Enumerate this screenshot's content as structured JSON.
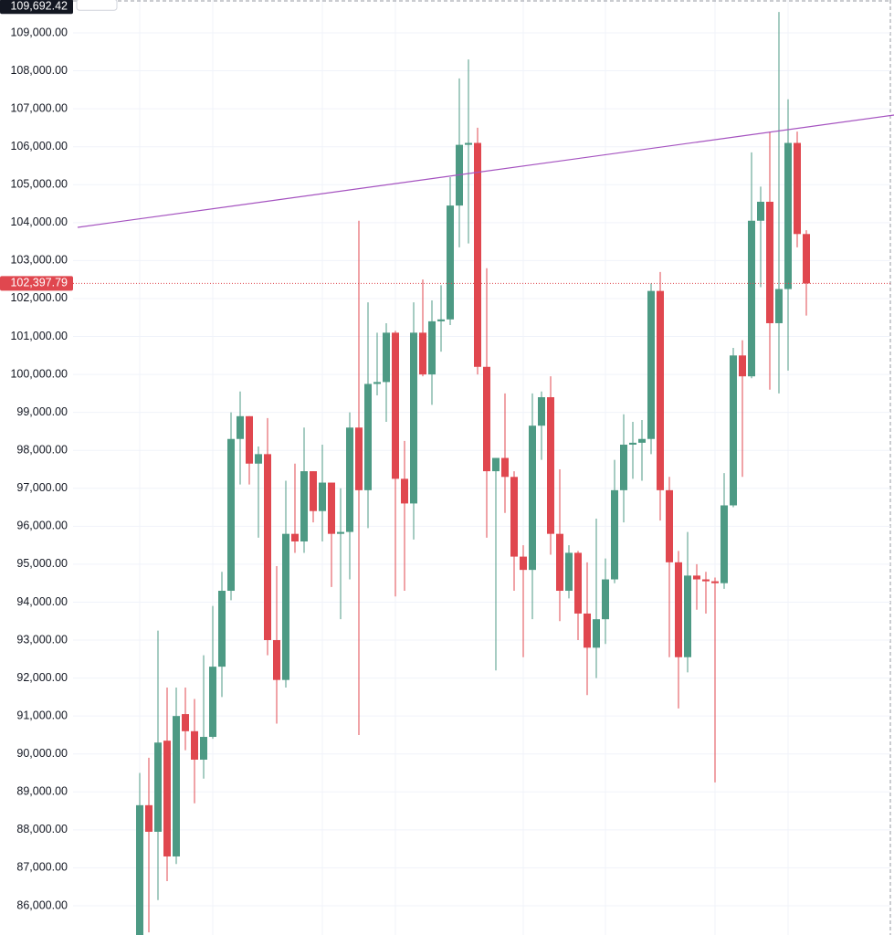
{
  "chart_data": {
    "type": "candlestick",
    "up_color": "#4d9a84",
    "down_color": "#e0474f",
    "grid": true,
    "ylim": [
      85230,
      109866
    ],
    "yticks": [
      {
        "value": 86000,
        "label": "86,000.00"
      },
      {
        "value": 87000,
        "label": "87,000.00"
      },
      {
        "value": 88000,
        "label": "88,000.00"
      },
      {
        "value": 89000,
        "label": "89,000.00"
      },
      {
        "value": 90000,
        "label": "90,000.00"
      },
      {
        "value": 91000,
        "label": "91,000.00"
      },
      {
        "value": 92000,
        "label": "92,000.00"
      },
      {
        "value": 93000,
        "label": "93,000.00"
      },
      {
        "value": 94000,
        "label": "94,000.00"
      },
      {
        "value": 95000,
        "label": "95,000.00"
      },
      {
        "value": 96000,
        "label": "96,000.00"
      },
      {
        "value": 97000,
        "label": "97,000.00"
      },
      {
        "value": 98000,
        "label": "98,000.00"
      },
      {
        "value": 99000,
        "label": "99,000.00"
      },
      {
        "value": 100000,
        "label": "100,000.00"
      },
      {
        "value": 101000,
        "label": "101,000.00"
      },
      {
        "value": 102000,
        "label": "102,000.00"
      },
      {
        "value": 103000,
        "label": "103,000.00"
      },
      {
        "value": 104000,
        "label": "104,000.00"
      },
      {
        "value": 105000,
        "label": "105,000.00"
      },
      {
        "value": 106000,
        "label": "106,000.00"
      },
      {
        "value": 107000,
        "label": "107,000.00"
      },
      {
        "value": 108000,
        "label": "108,000.00"
      },
      {
        "value": 109000,
        "label": "109,000.00"
      }
    ],
    "open": [
      85100,
      88650,
      87950,
      90350,
      87300,
      91050,
      90600,
      89850,
      90450,
      92300,
      94300,
      98300,
      98900,
      97650,
      97900,
      93000,
      91950,
      95800,
      95600,
      97450,
      96400,
      97150,
      95800,
      95850,
      98600,
      96950,
      99750,
      99800,
      101100,
      97250,
      96600,
      101100,
      100000,
      101400,
      101450,
      104450,
      106050,
      106100,
      100200,
      97450,
      97800,
      97300,
      95200,
      94850,
      98650,
      99400,
      95800,
      94300,
      95300,
      93700,
      92800,
      93550,
      94600,
      96950,
      98150,
      98200,
      98300,
      102200,
      96950,
      95050,
      92550,
      94700,
      94600,
      94550,
      94500,
      96550,
      100500,
      99950,
      104050,
      104550,
      101350,
      102250,
      106100,
      103700
    ],
    "high": [
      89500,
      89900,
      93250,
      91750,
      91750,
      91750,
      91450,
      92600,
      93900,
      94800,
      99000,
      99550,
      98900,
      98100,
      98850,
      94950,
      97200,
      97650,
      98600,
      97450,
      98150,
      97150,
      97000,
      99000,
      104050,
      101900,
      101100,
      101350,
      101150,
      98250,
      101900,
      102500,
      101950,
      102350,
      105200,
      107800,
      108300,
      106500,
      102800,
      97800,
      99500,
      97450,
      95500,
      99500,
      99550,
      99950,
      97500,
      95500,
      95350,
      95050,
      96200,
      95150,
      97750,
      98950,
      98750,
      98800,
      102400,
      102700,
      97300,
      95350,
      95850,
      95000,
      94800,
      94650,
      97400,
      100700,
      100900,
      105850,
      104950,
      106400,
      109550,
      107250,
      106400,
      103800
    ],
    "low": [
      84900,
      85300,
      86150,
      86650,
      87100,
      90100,
      88700,
      89350,
      90400,
      91500,
      94050,
      97100,
      97100,
      95700,
      92600,
      90800,
      91750,
      95300,
      95300,
      96100,
      95600,
      94400,
      93550,
      94600,
      90500,
      95950,
      99450,
      98750,
      94150,
      94300,
      95650,
      99950,
      99200,
      100600,
      101300,
      103350,
      103450,
      100000,
      95700,
      92200,
      96350,
      94300,
      92550,
      93550,
      97750,
      95250,
      93500,
      94100,
      93000,
      91550,
      92000,
      92900,
      94500,
      96100,
      97250,
      97200,
      97900,
      96150,
      92550,
      91200,
      92150,
      93800,
      93700,
      89250,
      94350,
      96500,
      97300,
      99900,
      102300,
      99600,
      99500,
      100100,
      103350,
      101550
    ],
    "close": [
      88650,
      87950,
      90300,
      87300,
      91000,
      90600,
      89850,
      90450,
      92300,
      94300,
      98300,
      98900,
      97650,
      97900,
      93000,
      91950,
      95800,
      95600,
      97450,
      96400,
      97150,
      95800,
      95850,
      98600,
      96950,
      99750,
      99800,
      101100,
      97250,
      96600,
      101100,
      100000,
      101400,
      101450,
      104450,
      106050,
      106100,
      100200,
      97450,
      97800,
      97300,
      95200,
      94850,
      98650,
      99400,
      95800,
      94300,
      95300,
      93700,
      92800,
      93550,
      94600,
      96950,
      98150,
      98200,
      98300,
      102200,
      96950,
      95050,
      92550,
      94700,
      94600,
      94550,
      94500,
      96550,
      100500,
      99950,
      104050,
      104550,
      101350,
      102250,
      106100,
      103700,
      102397.79
    ],
    "last_price": {
      "value": 102397.79,
      "label": "102,397.79"
    },
    "high_marker": {
      "value": 109692.42,
      "label": "109,692.42"
    },
    "trendline": {
      "color": "#a553c0",
      "x": [
        -6.8,
        82.6
      ],
      "y": [
        103876,
        106835
      ]
    }
  }
}
